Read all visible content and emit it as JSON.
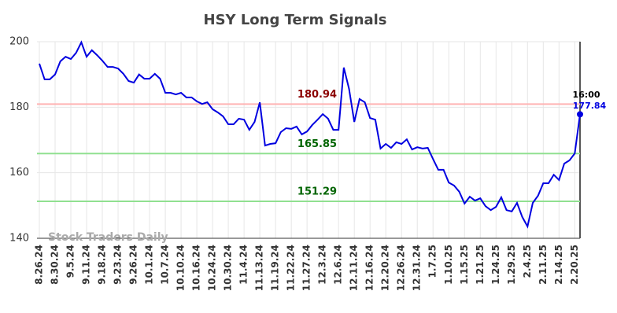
{
  "chart_data": {
    "type": "line",
    "title": "HSY Long Term Signals",
    "watermark": "Stock Traders Daily",
    "categories": [
      "8.26.24",
      null,
      null,
      "8.30.24",
      null,
      null,
      "9.5.24",
      null,
      null,
      "9.11.24",
      null,
      null,
      "9.18.24",
      null,
      null,
      "9.23.24",
      null,
      null,
      "9.26.24",
      null,
      null,
      "10.1.24",
      null,
      null,
      "10.7.24",
      null,
      null,
      "10.10.24",
      null,
      null,
      "10.16.24",
      null,
      null,
      "10.24.24",
      null,
      null,
      "10.30.24",
      null,
      null,
      "11.4.24",
      null,
      null,
      "11.13.24",
      null,
      null,
      "11.19.24",
      null,
      null,
      "11.22.24",
      null,
      null,
      "11.27.24",
      null,
      null,
      "12.3.24",
      null,
      null,
      "12.6.24",
      null,
      null,
      "12.11.24",
      null,
      null,
      "12.16.24",
      null,
      null,
      "12.20.24",
      null,
      null,
      "12.26.24",
      null,
      null,
      "12.31.24",
      null,
      null,
      "1.7.25",
      null,
      null,
      "1.10.25",
      null,
      null,
      "1.15.25",
      null,
      null,
      "1.21.25",
      null,
      null,
      "1.24.25",
      null,
      null,
      "1.29.25",
      null,
      null,
      "2.4.25",
      null,
      null,
      "2.11.25",
      null,
      null,
      "2.14.25",
      null,
      null,
      "2.20.25",
      null
    ],
    "values": [
      193.3,
      188.5,
      188.5,
      190,
      194,
      195.4,
      194.7,
      196.6,
      199.8,
      195.4,
      197.4,
      195.9,
      194.2,
      192.3,
      192.3,
      191.8,
      190.2,
      188,
      187.5,
      190,
      188.7,
      188.7,
      190.2,
      188.7,
      184.4,
      184.4,
      183.9,
      184.4,
      183,
      183,
      181.8,
      181,
      181.5,
      179.4,
      178.4,
      177.2,
      174.8,
      174.8,
      176.5,
      176.2,
      173.1,
      175.5,
      181.5,
      168.3,
      168.8,
      169,
      172.4,
      173.6,
      173.4,
      174.1,
      171.7,
      172.6,
      174.6,
      176.2,
      177.9,
      176.5,
      173.1,
      173.1,
      192.1,
      185.6,
      175.5,
      182.5,
      181.5,
      176.7,
      176.2,
      167.4,
      168.8,
      167.6,
      169.3,
      168.8,
      170.2,
      167.1,
      167.8,
      167.4,
      167.6,
      164.2,
      160.9,
      160.9,
      157,
      156.1,
      154.2,
      150.6,
      152.7,
      151.5,
      152.2,
      149.8,
      148.6,
      149.6,
      152.5,
      148.6,
      148.2,
      150.8,
      146.5,
      143.6,
      150.8,
      153,
      156.8,
      156.8,
      159.4,
      157.8,
      162.8,
      163.8,
      165.9,
      177.84
    ],
    "color": "#0000e0",
    "last_time": "16:00",
    "levels": [
      {
        "value": 180.94,
        "color": "#ffb3b3",
        "label_color": "#8b0000"
      },
      {
        "value": 165.85,
        "color": "#90e090",
        "label_color": "#006400"
      },
      {
        "value": 151.29,
        "color": "#90e090",
        "label_color": "#006400"
      }
    ],
    "ylim": [
      140,
      200
    ],
    "yticks": [
      140,
      160,
      180,
      200
    ],
    "grid": true
  }
}
